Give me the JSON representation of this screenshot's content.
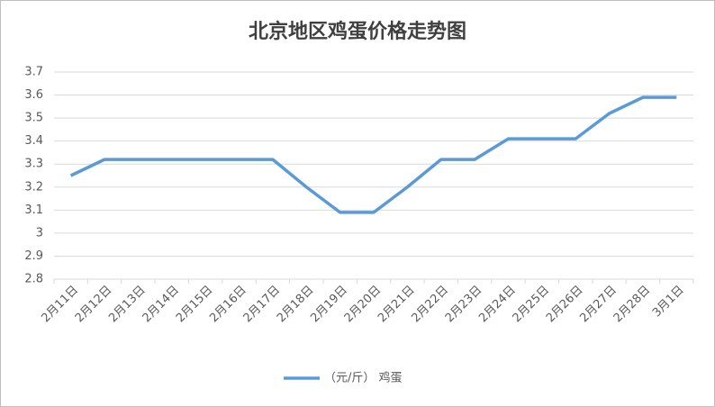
{
  "chart_data": {
    "type": "line",
    "title": "北京地区鸡蛋价格走势图",
    "categories": [
      "2月11日",
      "2月12日",
      "2月13日",
      "2月14日",
      "2月15日",
      "2月16日",
      "2月17日",
      "2月18日",
      "2月19日",
      "2月20日",
      "2月21日",
      "2月22日",
      "2月23日",
      "2月24日",
      "2月25日",
      "2月26日",
      "2月27日",
      "2月28日",
      "3月1日"
    ],
    "series": [
      {
        "name": "（元/斤） 鸡蛋",
        "color": "#5b9bd5",
        "values": [
          3.25,
          3.32,
          3.32,
          3.32,
          3.32,
          3.32,
          3.32,
          3.2,
          3.09,
          3.09,
          3.2,
          3.32,
          3.32,
          3.41,
          3.41,
          3.41,
          3.52,
          3.59,
          3.59
        ]
      }
    ],
    "ylim": [
      2.8,
      3.7
    ],
    "yticks": [
      2.8,
      2.9,
      3,
      3.1,
      3.2,
      3.3,
      3.4,
      3.5,
      3.6,
      3.7
    ],
    "grid": true,
    "legend": "bottom"
  }
}
